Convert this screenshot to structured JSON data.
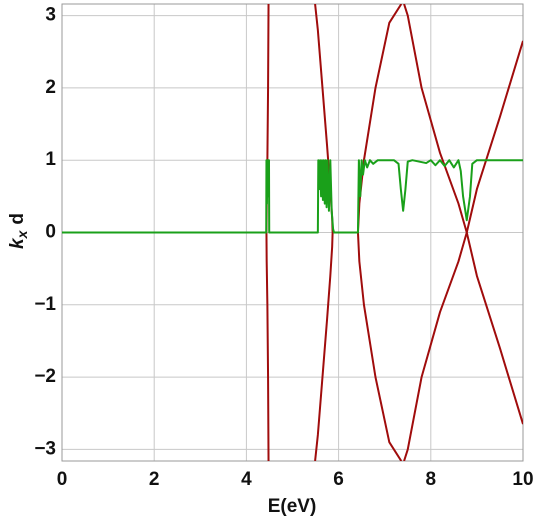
{
  "chart_data": {
    "type": "line",
    "xlabel": "E(eV)",
    "ylabel": [
      "k",
      "x",
      "d"
    ],
    "xlim": [
      0,
      10
    ],
    "ylim": [
      -3.16,
      3.16
    ],
    "xticks": [
      0,
      2,
      4,
      6,
      8,
      10
    ],
    "yticks": [
      {
        "value": -3,
        "label": "−3"
      },
      {
        "value": -2,
        "label": "−2"
      },
      {
        "value": -1,
        "label": "−1"
      },
      0,
      1,
      2,
      3
    ],
    "grid": true,
    "series": [
      {
        "color": "#a00c0c",
        "x": [
          4.48,
          4.47,
          4.455,
          4.44,
          4.435,
          4.44,
          4.455,
          4.47,
          4.48
        ],
        "values": [
          3.16,
          2,
          1,
          0.4,
          0,
          -0.4,
          -1,
          -2,
          -3.16
        ]
      },
      {
        "color": "#a00c0c",
        "x": [
          5.49,
          5.55,
          5.65,
          5.75,
          5.82,
          5.86,
          5.87,
          5.86,
          5.82,
          5.75,
          5.65,
          5.55,
          5.49
        ],
        "values": [
          3.16,
          2.8,
          2,
          1.2,
          0.6,
          0.2,
          0,
          -0.2,
          -0.6,
          -1.2,
          -2,
          -2.8,
          -3.16
        ]
      },
      {
        "color": "#a00c0c",
        "x": [
          7.36,
          7.1,
          6.8,
          6.55,
          6.45,
          6.42,
          6.45,
          6.55,
          6.8,
          7.1,
          7.36
        ],
        "values": [
          3.16,
          2.9,
          2,
          1,
          0.4,
          0,
          -0.4,
          -1,
          -2,
          -2.9,
          -3.16
        ]
      },
      {
        "color": "#a00c0c",
        "x": [
          7.42,
          7.5,
          7.8,
          8.2,
          8.6,
          8.78,
          9.0,
          9.5,
          10
        ],
        "values": [
          3.16,
          3,
          2,
          1.1,
          0.4,
          0,
          -0.6,
          -1.6,
          -2.65
        ]
      },
      {
        "color": "#a00c0c",
        "x": [
          7.42,
          7.5,
          7.8,
          8.2,
          8.6,
          8.78,
          9.0,
          9.5,
          10
        ],
        "values": [
          -3.16,
          -3,
          -2,
          -1.1,
          -0.4,
          0,
          0.6,
          1.6,
          2.65
        ]
      },
      {
        "color": "#1aa01a",
        "x": [
          0,
          4.43,
          4.435,
          4.445,
          4.455,
          4.465,
          4.475,
          4.49,
          4.495,
          5.55,
          5.56,
          5.58,
          5.6,
          5.62,
          5.64,
          5.66,
          5.68,
          5.7,
          5.72,
          5.74,
          5.76,
          5.79,
          5.82,
          5.85,
          5.88,
          5.9,
          6.42,
          6.44,
          6.47,
          6.5,
          6.53,
          6.57,
          6.62,
          6.68,
          6.75,
          6.85,
          7.2,
          7.3,
          7.35,
          7.4,
          7.45,
          7.5,
          7.6,
          7.9,
          8.0,
          8.1,
          8.2,
          8.3,
          8.4,
          8.5,
          8.6,
          8.65,
          8.7,
          8.78,
          8.85,
          8.9,
          9.0,
          10
        ],
        "values": [
          0,
          0,
          1,
          0.4,
          1,
          0.5,
          1,
          1,
          0,
          0,
          1,
          0.6,
          1,
          0.5,
          1,
          0.45,
          1,
          0.4,
          1,
          0.35,
          1,
          0.3,
          1,
          0.3,
          0.05,
          0,
          0,
          1,
          0.5,
          1,
          0.8,
          1,
          0.9,
          1,
          0.95,
          1,
          1,
          0.95,
          0.6,
          0.3,
          0.6,
          0.98,
          1,
          0.96,
          1,
          0.93,
          1,
          0.92,
          1,
          0.9,
          1,
          0.85,
          0.5,
          0.17,
          0.5,
          0.95,
          1,
          1
        ]
      }
    ]
  }
}
